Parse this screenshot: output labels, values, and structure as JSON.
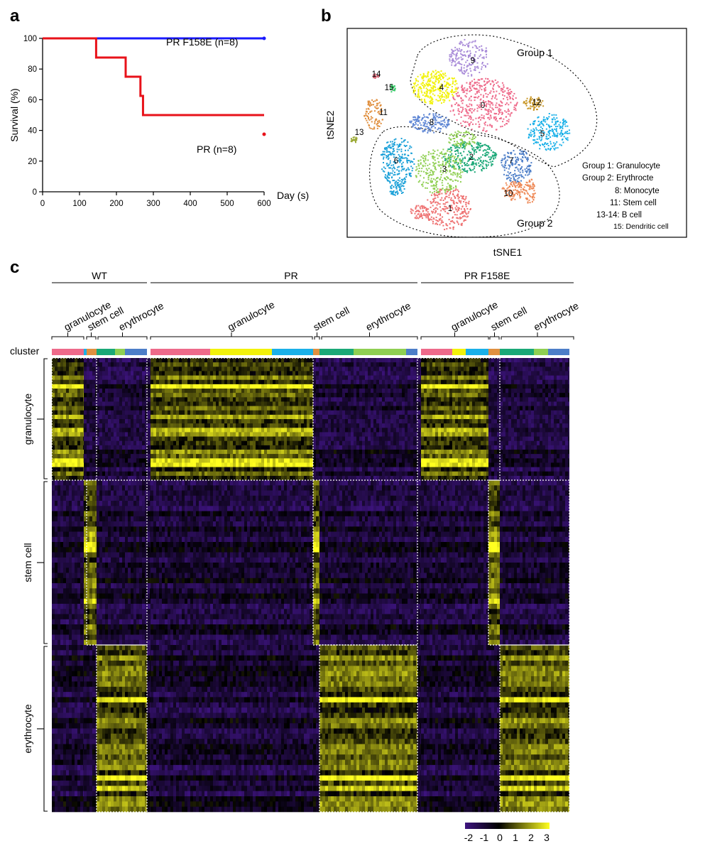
{
  "panels": {
    "a": {
      "label": "a"
    },
    "b": {
      "label": "b"
    },
    "c": {
      "label": "c"
    }
  },
  "chart_data": [
    {
      "panel": "a",
      "type": "line",
      "title": "",
      "xlabel": "Day (s)",
      "ylabel": "Survival (%)",
      "xlim": [
        0,
        600
      ],
      "ylim": [
        0,
        100
      ],
      "xticks": [
        0,
        100,
        200,
        300,
        400,
        500,
        600
      ],
      "yticks": [
        0,
        20,
        40,
        60,
        80,
        100
      ],
      "grid": false,
      "series": [
        {
          "name": "PR F158E (n=8)",
          "color": "#1a1aff",
          "steps": [
            [
              0,
              100
            ],
            [
              600,
              100
            ]
          ]
        },
        {
          "name": "PR (n=8)",
          "color": "#e8121a",
          "steps": [
            [
              0,
              100
            ],
            [
              145,
              87.5
            ],
            [
              225,
              75
            ],
            [
              265,
              62.5
            ],
            [
              272,
              50
            ],
            [
              600,
              37.5
            ]
          ]
        }
      ]
    },
    {
      "panel": "b",
      "type": "scatter",
      "xlabel": "tSNE1",
      "ylabel": "tSNE2",
      "groups": [
        "Group 1",
        "Group 2"
      ],
      "clusters": [
        {
          "id": "0",
          "color": "#ee6a8a"
        },
        {
          "id": "1",
          "color": "#ee7070"
        },
        {
          "id": "2",
          "color": "#1aa877"
        },
        {
          "id": "3",
          "color": "#8fcf52"
        },
        {
          "id": "4",
          "color": "#f2f20a"
        },
        {
          "id": "5",
          "color": "#1ab0e8"
        },
        {
          "id": "6",
          "color": "#1aa0d8"
        },
        {
          "id": "7",
          "color": "#4d7ec8"
        },
        {
          "id": "8",
          "color": "#5e86d4"
        },
        {
          "id": "9",
          "color": "#a88ad8"
        },
        {
          "id": "10",
          "color": "#ee8855"
        },
        {
          "id": "11",
          "color": "#e09040"
        },
        {
          "id": "12",
          "color": "#c9982a"
        },
        {
          "id": "13",
          "color": "#9aa832"
        },
        {
          "id": "14",
          "color": "#d06070"
        },
        {
          "id": "15",
          "color": "#33cc66"
        }
      ],
      "legend_lines": [
        "Group 1: Granulocyte",
        "Group 2: Erythrocte",
        "8: Monocyte",
        "11: Stem cell",
        "13-14: B cell",
        "15: Dendritic cell"
      ]
    },
    {
      "panel": "c",
      "type": "heatmap",
      "conditions": [
        "WT",
        "PR",
        "PR F158E"
      ],
      "column_labels": [
        "granulocyte",
        "stem cell",
        "erythrocyte"
      ],
      "row_groups": [
        "granulocyte",
        "stem cell",
        "erythrocyte"
      ],
      "cluster_row_label": "cluster",
      "colorscale": {
        "min": -2,
        "max": 3,
        "ticks": [
          -2,
          -1,
          0,
          1,
          2,
          3
        ],
        "colors": [
          "#3e1480",
          "#000000",
          "#ffff20"
        ]
      }
    }
  ]
}
